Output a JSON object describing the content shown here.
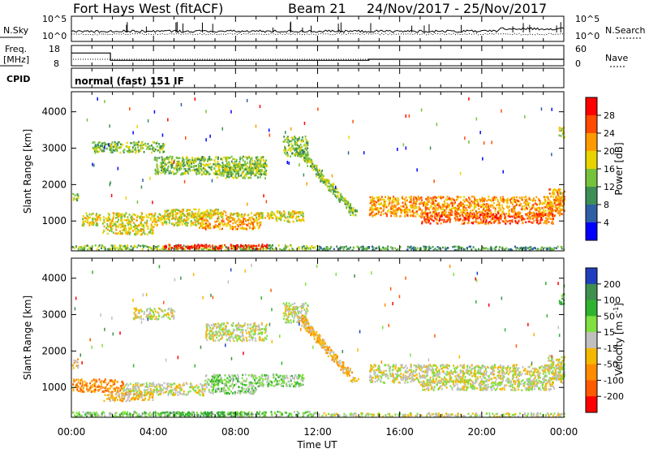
{
  "header": {
    "site": "Fort Hays West (fitACF)",
    "beam": "Beam 21",
    "dates": "24/Nov/2017 - 25/Nov/2017"
  },
  "noise_panel": {
    "left_label": "N.Sky",
    "right_label": "N.Search",
    "left_ticks": [
      "10^5",
      "10^0"
    ],
    "right_ticks": [
      "10^5",
      "10^0"
    ]
  },
  "freq_panel": {
    "left_label_top": "Freq.",
    "left_label_unit": "[MHz]",
    "left_ticks": [
      "18",
      "8"
    ],
    "right_label": "Nave",
    "right_ticks": [
      "60",
      "0"
    ],
    "freq_yrange": [
      8,
      18
    ],
    "freq_steps": [
      [
        0.0,
        14.3
      ],
      [
        1.9,
        14.3
      ],
      [
        1.9,
        10.7
      ],
      [
        14.5,
        10.7
      ],
      [
        14.5,
        11.2
      ],
      [
        24.0,
        11.2
      ]
    ]
  },
  "cpid_panel": {
    "label": "CPID",
    "text": "normal (fast) 151 IF"
  },
  "time_axis": {
    "label": "Time UT",
    "tick_hours": [
      0,
      4,
      8,
      12,
      16,
      20,
      24
    ],
    "tick_labels": [
      "00:00",
      "04:00",
      "08:00",
      "12:00",
      "16:00",
      "20:00",
      "00:00"
    ]
  },
  "range_axis": {
    "label": "Slant Range [km]",
    "ylim": [
      180,
      4550
    ],
    "tick_values": [
      1000,
      2000,
      3000,
      4000
    ],
    "tick_labels": [
      "1000",
      "2000",
      "3000",
      "4000"
    ]
  },
  "power_colorbar": {
    "title": "Power [dB]",
    "ticks": [
      "28",
      "24",
      "20",
      "16",
      "12",
      "8",
      "4"
    ],
    "colors": [
      "#ff0000",
      "#ff4a00",
      "#ff9b00",
      "#e8d400",
      "#77c23d",
      "#3e8f55",
      "#2f5fa5",
      "#0000ff"
    ]
  },
  "velocity_colorbar": {
    "title": "Velocity [m s",
    "title_sup": "-1",
    "title_end": "]",
    "ticks": [
      "200",
      "100",
      "50",
      "15",
      "-15",
      "-50",
      "-100",
      "-200"
    ],
    "colors": [
      "#1f3fbf",
      "#3f8f4f",
      "#2fb32f",
      "#7fe03f",
      "#c0c0c0",
      "#f5b800",
      "#ff8c00",
      "#ff5a00",
      "#ff0000"
    ]
  },
  "chart_data": [
    {
      "type": "heatmap",
      "name": "power",
      "x_unit": "hours UT",
      "y_unit": "km",
      "regions": [
        {
          "t0": 0.0,
          "t1": 0.3,
          "r0": 1550,
          "r1": 1800,
          "level": 3
        },
        {
          "t0": 0.5,
          "t1": 6.5,
          "r0": 900,
          "r1": 1250,
          "level": 4
        },
        {
          "t0": 4.5,
          "t1": 7.5,
          "r0": 1150,
          "r1": 1350,
          "level": 4
        },
        {
          "t0": 6.2,
          "t1": 9.2,
          "r0": 800,
          "r1": 1100,
          "level": 5
        },
        {
          "t0": 6.5,
          "t1": 10.0,
          "r0": 1100,
          "r1": 1250,
          "level": 4
        },
        {
          "t0": 9.5,
          "t1": 11.3,
          "r0": 1000,
          "r1": 1300,
          "level": 4
        },
        {
          "t0": 1.5,
          "t1": 4.0,
          "r0": 650,
          "r1": 900,
          "level": 4
        },
        {
          "t0": 0.0,
          "t1": 12.0,
          "r0": 220,
          "r1": 360,
          "level": 3
        },
        {
          "t0": 4.5,
          "t1": 9.5,
          "r0": 260,
          "r1": 380,
          "level": 7
        },
        {
          "t0": 12.0,
          "t1": 24.0,
          "r0": 220,
          "r1": 330,
          "level": 2
        },
        {
          "t0": 1.0,
          "t1": 4.5,
          "r0": 2900,
          "r1": 3200,
          "level": 3
        },
        {
          "t0": 4.0,
          "t1": 9.5,
          "r0": 2300,
          "r1": 2800,
          "level": 3
        },
        {
          "t0": 7.0,
          "t1": 9.5,
          "r0": 2200,
          "r1": 2600,
          "level": 3
        },
        {
          "t0": 10.3,
          "t1": 11.5,
          "r0": 2800,
          "r1": 3350,
          "level": 3
        },
        {
          "t0": 14.5,
          "t1": 24.0,
          "r0": 1150,
          "r1": 1700,
          "level": 5
        },
        {
          "t0": 17.0,
          "t1": 23.5,
          "r0": 950,
          "r1": 1250,
          "level": 6
        },
        {
          "t0": 23.2,
          "t1": 24.0,
          "r0": 1250,
          "r1": 1900,
          "level": 5
        },
        {
          "t0": 23.7,
          "t1": 24.0,
          "r0": 3300,
          "r1": 3600,
          "level": 4
        }
      ],
      "diagonal": {
        "t0": 11.0,
        "r0": 3000,
        "t1": 13.8,
        "r1": 1200,
        "level": 3
      }
    },
    {
      "type": "heatmap",
      "name": "velocity",
      "x_unit": "hours UT",
      "y_unit": "km",
      "regions": [
        {
          "t0": 0.0,
          "t1": 0.3,
          "r0": 1550,
          "r1": 1800,
          "level": 3
        },
        {
          "t0": 0.0,
          "t1": 2.5,
          "r0": 900,
          "r1": 1250,
          "level": 2
        },
        {
          "t0": 2.5,
          "t1": 6.5,
          "r0": 800,
          "r1": 1150,
          "level": 4
        },
        {
          "t0": 1.5,
          "t1": 4.0,
          "r0": 650,
          "r1": 900,
          "level": 3
        },
        {
          "t0": 6.5,
          "t1": 11.3,
          "r0": 1050,
          "r1": 1380,
          "level": 5
        },
        {
          "t0": 6.5,
          "t1": 9.0,
          "r0": 850,
          "r1": 1050,
          "level": 5
        },
        {
          "t0": 0.0,
          "t1": 12.0,
          "r0": 220,
          "r1": 360,
          "level": 5
        },
        {
          "t0": 4.5,
          "t1": 9.5,
          "r0": 240,
          "r1": 350,
          "level": 6
        },
        {
          "t0": 12.0,
          "t1": 24.0,
          "r0": 220,
          "r1": 320,
          "level": 4
        },
        {
          "t0": 3.0,
          "t1": 5.0,
          "r0": 2900,
          "r1": 3200,
          "level": 4
        },
        {
          "t0": 6.5,
          "t1": 9.5,
          "r0": 2300,
          "r1": 2800,
          "level": 4
        },
        {
          "t0": 10.3,
          "t1": 11.5,
          "r0": 2800,
          "r1": 3350,
          "level": 4
        },
        {
          "t0": 14.5,
          "t1": 24.0,
          "r0": 1150,
          "r1": 1650,
          "level": 4
        },
        {
          "t0": 17.0,
          "t1": 23.5,
          "r0": 950,
          "r1": 1200,
          "level": 4
        },
        {
          "t0": 23.2,
          "t1": 24.0,
          "r0": 1250,
          "r1": 1900,
          "level": 4
        },
        {
          "t0": 23.7,
          "t1": 24.0,
          "r0": 3300,
          "r1": 3600,
          "level": 6
        }
      ],
      "diagonal": {
        "t0": 11.0,
        "r0": 3000,
        "t1": 13.8,
        "r1": 1200,
        "level": 3
      }
    }
  ]
}
